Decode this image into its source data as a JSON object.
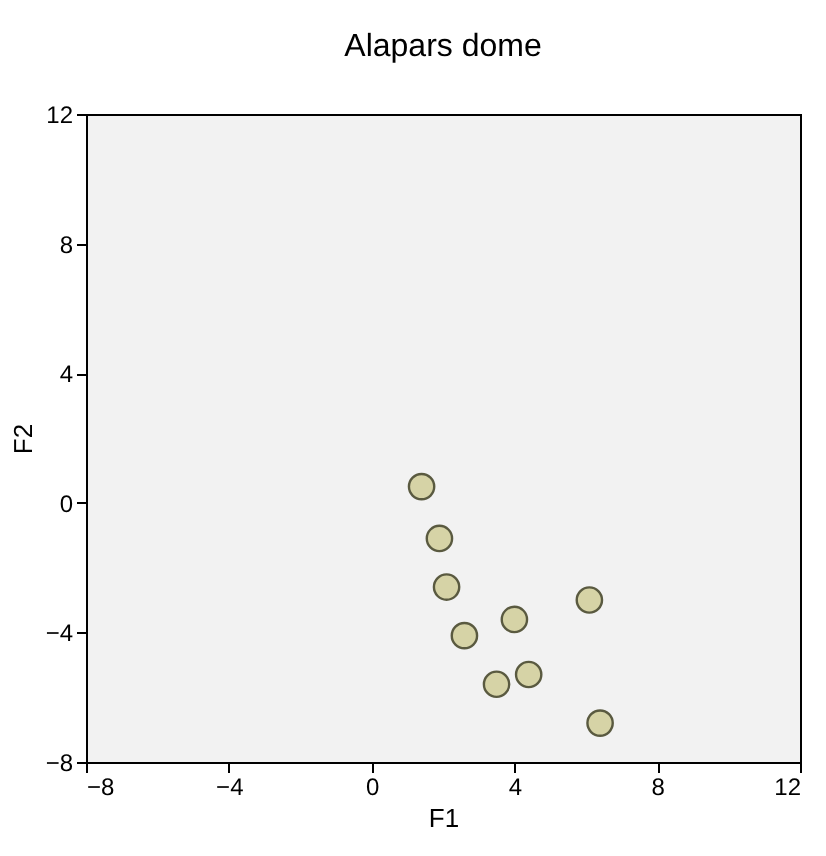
{
  "chart_data": {
    "type": "scatter",
    "title": "Alapars dome",
    "xlabel": "F1",
    "ylabel": "F2",
    "x": [
      1.4,
      1.9,
      2.1,
      2.6,
      4.0,
      3.5,
      4.4,
      6.1,
      6.4
    ],
    "series": [
      {
        "color": "#d6d3a6",
        "values": [
          0.5,
          -1.1,
          -2.6,
          -4.1,
          -3.6,
          -5.6,
          -5.3,
          -3.0,
          -6.8
        ]
      }
    ],
    "xlim": [
      -8,
      12
    ],
    "ylim": [
      -8,
      12
    ],
    "xticks": [
      -8,
      -4,
      0,
      4,
      8,
      12
    ],
    "yticks": [
      -8,
      -4,
      0,
      4,
      8,
      12
    ],
    "grid": false,
    "marker": "circle"
  }
}
